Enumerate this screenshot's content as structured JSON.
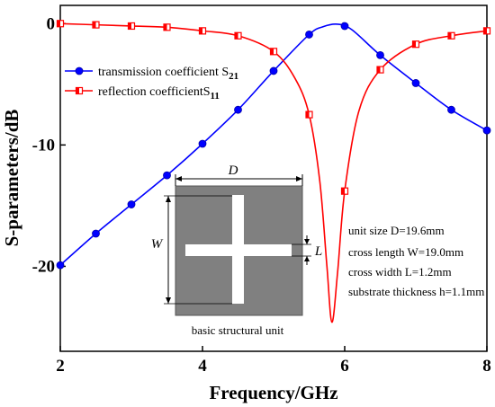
{
  "chart_data": {
    "type": "line",
    "xlabel": "Frequency/GHz",
    "ylabel": "S-parameters/dB",
    "xlim": [
      2,
      8
    ],
    "ylim": [
      -27,
      1.5
    ],
    "xticks": [
      2,
      4,
      6,
      8
    ],
    "yticks": [
      0,
      -10,
      -20
    ],
    "x_tick_labels": [
      "2",
      "4",
      "6",
      "8"
    ],
    "y_tick_labels": [
      "0",
      "-10",
      "-20"
    ],
    "grid": false,
    "legend_position": "top-left",
    "series": [
      {
        "name_main": "transmission coefficient S",
        "name_sub": "21",
        "color": "#0000ff",
        "marker": "circle",
        "x": [
          2.0,
          2.5,
          3.0,
          3.5,
          4.0,
          4.5,
          5.0,
          5.5,
          6.0,
          6.5,
          7.0,
          7.5,
          8.0
        ],
        "y": [
          -19.9,
          -17.3,
          -14.9,
          -12.5,
          -9.9,
          -7.1,
          -3.9,
          -0.9,
          -0.2,
          -2.6,
          -4.9,
          -7.1,
          -8.8
        ],
        "curve_x": [
          2.0,
          2.5,
          3.0,
          3.5,
          4.0,
          4.5,
          5.0,
          5.5,
          5.7,
          5.9,
          6.1,
          6.5,
          7.0,
          7.5,
          8.0
        ],
        "curve_y": [
          -19.9,
          -17.3,
          -14.9,
          -12.5,
          -9.9,
          -7.1,
          -3.9,
          -0.9,
          -0.25,
          -0.05,
          -0.5,
          -2.6,
          -4.9,
          -7.1,
          -8.8
        ]
      },
      {
        "name_main": "reflection coefficientS",
        "name_sub": "11",
        "color": "#ff0000",
        "marker": "square",
        "x": [
          2.0,
          2.5,
          3.0,
          3.5,
          4.0,
          4.5,
          5.0,
          5.5,
          6.0,
          6.5,
          7.0,
          7.5,
          8.0
        ],
        "y": [
          0.0,
          -0.1,
          -0.2,
          -0.3,
          -0.6,
          -1.0,
          -2.3,
          -7.5,
          -13.8,
          -3.8,
          -1.7,
          -1.0,
          -0.6
        ],
        "curve_x": [
          2.0,
          2.5,
          3.0,
          3.5,
          4.0,
          4.5,
          5.0,
          5.3,
          5.5,
          5.65,
          5.75,
          5.82,
          5.9,
          6.0,
          6.2,
          6.5,
          7.0,
          7.5,
          8.0
        ],
        "curve_y": [
          0.0,
          -0.1,
          -0.2,
          -0.3,
          -0.6,
          -1.0,
          -2.3,
          -4.5,
          -7.5,
          -13.0,
          -20.0,
          -24.6,
          -20.5,
          -13.8,
          -7.2,
          -3.8,
          -1.7,
          -1.0,
          -0.6
        ]
      }
    ],
    "inset": {
      "caption": "basic structural unit",
      "dim_D": "D",
      "dim_W": "W",
      "dim_L": "L"
    },
    "annotations": [
      "unit size D=19.6mm",
      "cross length W=19.0mm",
      "cross width L=1.2mm",
      "substrate thickness h=1.1mm"
    ]
  }
}
